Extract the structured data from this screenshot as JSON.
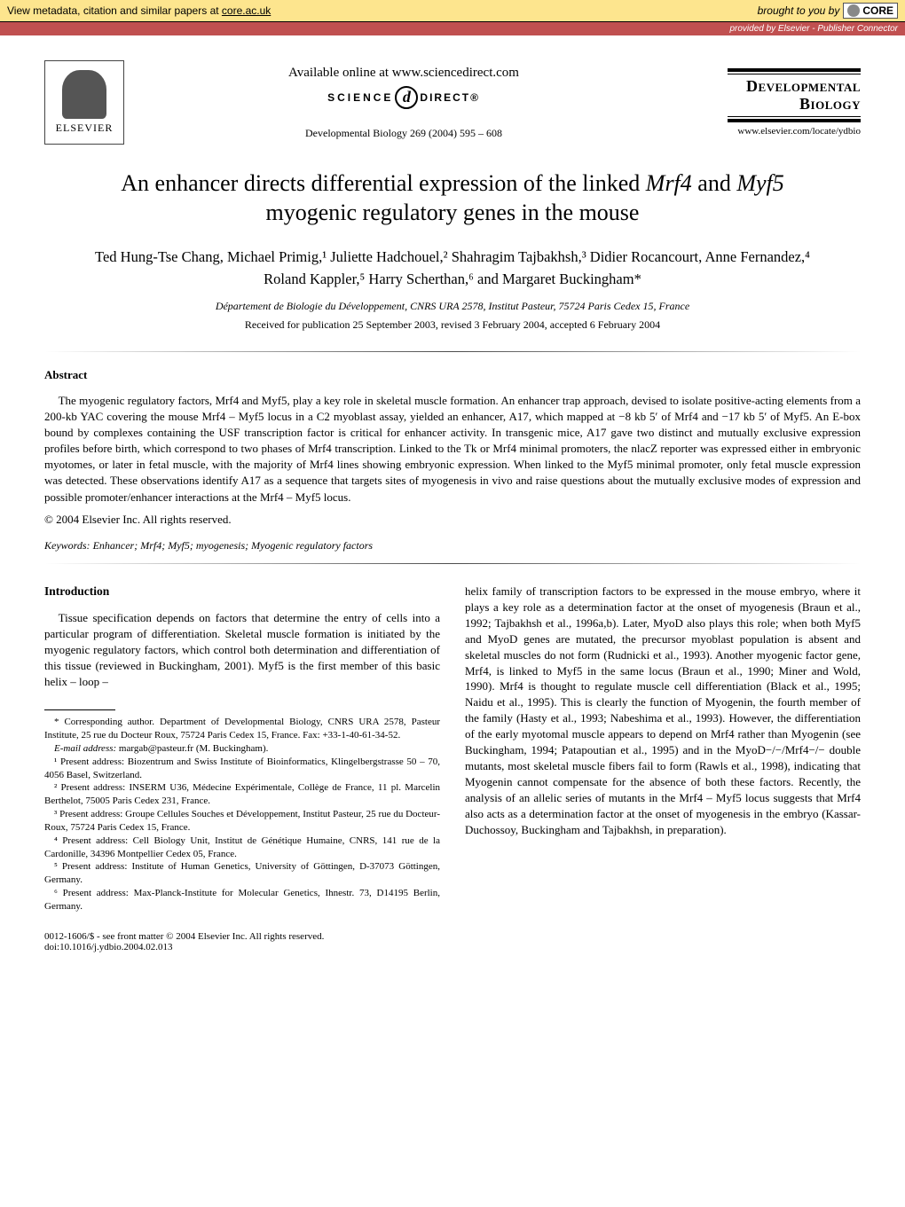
{
  "banner": {
    "left_prefix": "View metadata, citation and similar papers at ",
    "left_link": "core.ac.uk",
    "right_prefix": "brought to you by",
    "core_label": "CORE",
    "sub": "provided by Elsevier - Publisher Connector"
  },
  "header": {
    "elsevier": "ELSEVIER",
    "available": "Available online at www.sciencedirect.com",
    "sd_science": "SCIENCE",
    "sd_d": "d",
    "sd_direct": "DIRECT®",
    "citation": "Developmental Biology 269 (2004) 595 – 608",
    "journal_line1": "Developmental",
    "journal_line2": "Biology",
    "journal_url": "www.elsevier.com/locate/ydbio"
  },
  "title": {
    "pre": "An enhancer directs differential expression of the linked ",
    "g1": "Mrf4",
    "mid": " and ",
    "g2": "Myf5",
    "post": " myogenic regulatory genes in the mouse"
  },
  "authors": "Ted Hung-Tse Chang, Michael Primig,¹ Juliette Hadchouel,² Shahragim Tajbakhsh,³ Didier Rocancourt, Anne Fernandez,⁴ Roland Kappler,⁵ Harry Scherthan,⁶ and Margaret Buckingham*",
  "affiliation": "Département de Biologie du Développement, CNRS URA 2578, Institut Pasteur, 75724 Paris Cedex 15, France",
  "dates": "Received for publication 25 September 2003, revised 3 February 2004, accepted 6 February 2004",
  "abstract": {
    "heading": "Abstract",
    "body": "The myogenic regulatory factors, Mrf4 and Myf5, play a key role in skeletal muscle formation. An enhancer trap approach, devised to isolate positive-acting elements from a 200-kb YAC covering the mouse Mrf4 – Myf5 locus in a C2 myoblast assay, yielded an enhancer, A17, which mapped at −8 kb 5′ of Mrf4 and −17 kb 5′ of Myf5. An E-box bound by complexes containing the USF transcription factor is critical for enhancer activity. In transgenic mice, A17 gave two distinct and mutually exclusive expression profiles before birth, which correspond to two phases of Mrf4 transcription. Linked to the Tk or Mrf4 minimal promoters, the nlacZ reporter was expressed either in embryonic myotomes, or later in fetal muscle, with the majority of Mrf4 lines showing embryonic expression. When linked to the Myf5 minimal promoter, only fetal muscle expression was detected. These observations identify A17 as a sequence that targets sites of myogenesis in vivo and raise questions about the mutually exclusive modes of expression and possible promoter/enhancer interactions at the Mrf4 – Myf5 locus.",
    "copyright": "© 2004 Elsevier Inc. All rights reserved.",
    "keywords_label": "Keywords:",
    "keywords": " Enhancer; Mrf4; Myf5; myogenesis; Myogenic regulatory factors"
  },
  "intro": {
    "heading": "Introduction",
    "left_para": "Tissue specification depends on factors that determine the entry of cells into a particular program of differentiation. Skeletal muscle formation is initiated by the myogenic regulatory factors, which control both determination and differentiation of this tissue (reviewed in Buckingham, 2001). Myf5 is the first member of this basic helix – loop –",
    "right_para": "helix family of transcription factors to be expressed in the mouse embryo, where it plays a key role as a determination factor at the onset of myogenesis (Braun et al., 1992; Tajbakhsh et al., 1996a,b). Later, MyoD also plays this role; when both Myf5 and MyoD genes are mutated, the precursor myoblast population is absent and skeletal muscles do not form (Rudnicki et al., 1993). Another myogenic factor gene, Mrf4, is linked to Myf5 in the same locus (Braun et al., 1990; Miner and Wold, 1990). Mrf4 is thought to regulate muscle cell differentiation (Black et al., 1995; Naidu et al., 1995). This is clearly the function of Myogenin, the fourth member of the family (Hasty et al., 1993; Nabeshima et al., 1993). However, the differentiation of the early myotomal muscle appears to depend on Mrf4 rather than Myogenin (see Buckingham, 1994; Patapoutian et al., 1995) and in the MyoD−/−/Mrf4−/− double mutants, most skeletal muscle fibers fail to form (Rawls et al., 1998), indicating that Myogenin cannot compensate for the absence of both these factors. Recently, the analysis of an allelic series of mutants in the Mrf4 – Myf5 locus suggests that Mrf4 also acts as a determination factor at the onset of myogenesis in the embryo (Kassar-Duchossoy, Buckingham and Tajbakhsh, in preparation)."
  },
  "footnotes": {
    "corr": "* Corresponding author. Department of Developmental Biology, CNRS URA 2578, Pasteur Institute, 25 rue du Docteur Roux, 75724 Paris Cedex 15, France. Fax: +33-1-40-61-34-52.",
    "email_label": "E-mail address:",
    "email": " margab@pasteur.fr (M. Buckingham).",
    "n1": "¹ Present address: Biozentrum and Swiss Institute of Bioinformatics, Klingelbergstrasse 50 – 70, 4056 Basel, Switzerland.",
    "n2": "² Present address: INSERM U36, Médecine Expérimentale, Collège de France, 11 pl. Marcelin Berthelot, 75005 Paris Cedex 231, France.",
    "n3": "³ Present address: Groupe Cellules Souches et Développement, Institut Pasteur, 25 rue du Docteur-Roux, 75724 Paris Cedex 15, France.",
    "n4": "⁴ Present address: Cell Biology Unit, Institut de Génétique Humaine, CNRS, 141 rue de la Cardonille, 34396 Montpellier Cedex 05, France.",
    "n5": "⁵ Present address: Institute of Human Genetics, University of Göttingen, D-37073 Göttingen, Germany.",
    "n6": "⁶ Present address: Max-Planck-Institute for Molecular Genetics, Ihnestr. 73, D14195 Berlin, Germany."
  },
  "footer": {
    "line1": "0012-1606/$ - see front matter © 2004 Elsevier Inc. All rights reserved.",
    "line2": "doi:10.1016/j.ydbio.2004.02.013"
  },
  "colors": {
    "banner_bg": "#fde58e",
    "sub_banner_bg": "#c05050",
    "ref_link": "#2a4aa0"
  }
}
